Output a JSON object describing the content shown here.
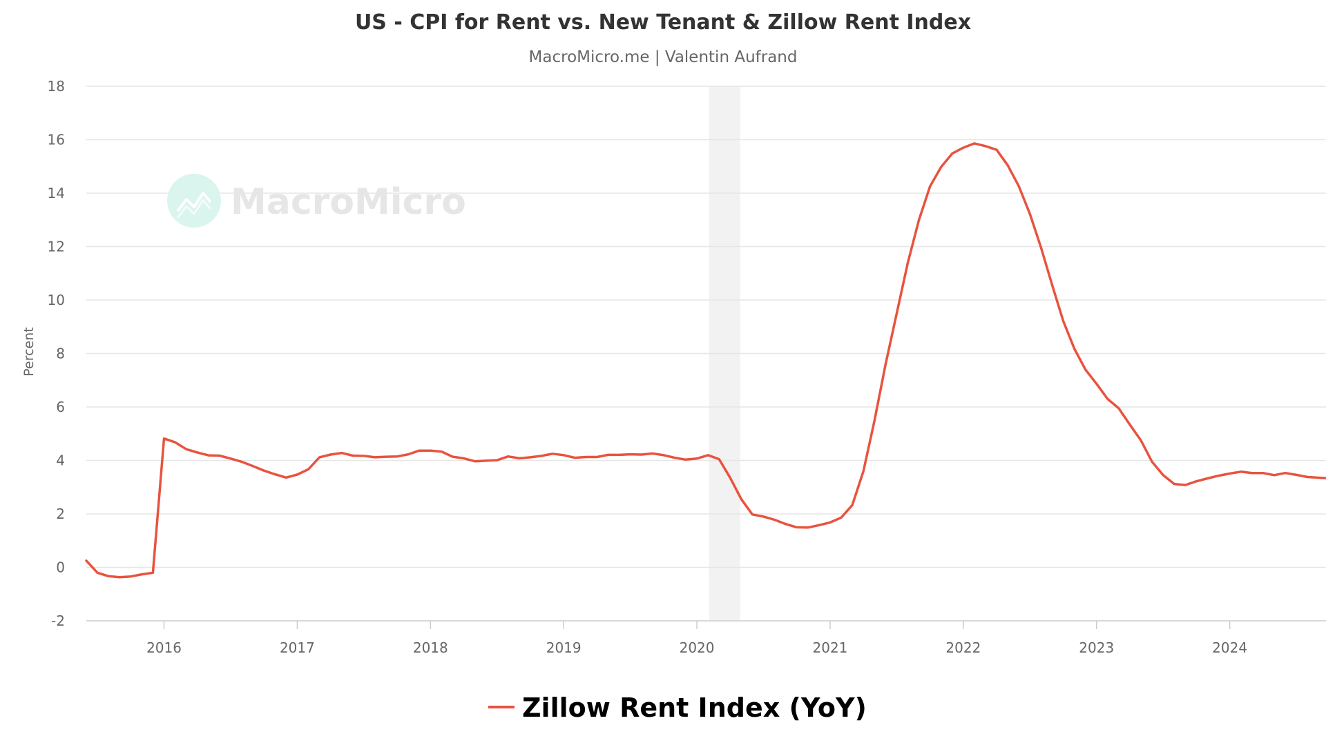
{
  "title": "US - CPI for Rent vs. New Tenant & Zillow Rent Index",
  "subtitle": "MacroMicro.me | Valentin Aufrand",
  "watermark": "MacroMicro",
  "colors": {
    "series": "#e8533f",
    "recession_band": "#f2f2f2",
    "grid": "#e6e6e6",
    "watermark_icon": "#d9f5ee"
  },
  "chart_data": {
    "type": "line",
    "title": "US - CPI for Rent vs. New Tenant & Zillow Rent Index",
    "subtitle": "MacroMicro.me | Valentin Aufrand",
    "xlabel": "",
    "ylabel": "Percent",
    "x_tick_labels": [
      "2016",
      "2017",
      "2018",
      "2019",
      "2020",
      "2021",
      "2022",
      "2023",
      "2024"
    ],
    "xlim": [
      "2015-06",
      "2024-09"
    ],
    "y_ticks": [
      -2,
      0,
      2,
      4,
      6,
      8,
      10,
      12,
      14,
      16,
      18
    ],
    "ylim": [
      -2,
      18
    ],
    "grid": true,
    "legend_position": "bottom-center",
    "shaded_periods": [
      {
        "start": "2020-02",
        "end": "2020-04"
      }
    ],
    "series": [
      {
        "name": "Zillow Rent Index (YoY)",
        "color": "#e8533f",
        "x": [
          "2015-06",
          "2015-07",
          "2015-08",
          "2015-09",
          "2015-10",
          "2015-11",
          "2015-12",
          "2016-01",
          "2016-02",
          "2016-03",
          "2016-04",
          "2016-05",
          "2016-06",
          "2016-07",
          "2016-08",
          "2016-09",
          "2016-10",
          "2016-11",
          "2016-12",
          "2017-01",
          "2017-02",
          "2017-03",
          "2017-04",
          "2017-05",
          "2017-06",
          "2017-07",
          "2017-08",
          "2017-09",
          "2017-10",
          "2017-11",
          "2017-12",
          "2018-01",
          "2018-02",
          "2018-03",
          "2018-04",
          "2018-05",
          "2018-06",
          "2018-07",
          "2018-08",
          "2018-09",
          "2018-10",
          "2018-11",
          "2018-12",
          "2019-01",
          "2019-02",
          "2019-03",
          "2019-04",
          "2019-05",
          "2019-06",
          "2019-07",
          "2019-08",
          "2019-09",
          "2019-10",
          "2019-11",
          "2019-12",
          "2020-01",
          "2020-02",
          "2020-03",
          "2020-04",
          "2020-05",
          "2020-06",
          "2020-07",
          "2020-08",
          "2020-09",
          "2020-10",
          "2020-11",
          "2020-12",
          "2021-01",
          "2021-02",
          "2021-03",
          "2021-04",
          "2021-05",
          "2021-06",
          "2021-07",
          "2021-08",
          "2021-09",
          "2021-10",
          "2021-11",
          "2021-12",
          "2022-01",
          "2022-02",
          "2022-03",
          "2022-04",
          "2022-05",
          "2022-06",
          "2022-07",
          "2022-08",
          "2022-09",
          "2022-10",
          "2022-11",
          "2022-12",
          "2023-01",
          "2023-02",
          "2023-03",
          "2023-04",
          "2023-05",
          "2023-06",
          "2023-07",
          "2023-08",
          "2023-09",
          "2023-10",
          "2023-11",
          "2023-12",
          "2024-01",
          "2024-02",
          "2024-03",
          "2024-04",
          "2024-05",
          "2024-06",
          "2024-07",
          "2024-08",
          "2024-09"
        ],
        "values": [
          0.25,
          -0.2,
          -0.33,
          -0.37,
          -0.34,
          -0.26,
          -0.2,
          4.82,
          4.68,
          4.42,
          4.3,
          4.19,
          4.18,
          4.07,
          3.95,
          3.79,
          3.62,
          3.48,
          3.36,
          3.47,
          3.67,
          4.12,
          4.22,
          4.28,
          4.18,
          4.17,
          4.12,
          4.14,
          4.15,
          4.23,
          4.37,
          4.37,
          4.33,
          4.14,
          4.08,
          3.97,
          3.99,
          4.01,
          4.15,
          4.08,
          4.12,
          4.17,
          4.25,
          4.2,
          4.1,
          4.13,
          4.13,
          4.21,
          4.21,
          4.23,
          4.22,
          4.26,
          4.2,
          4.1,
          4.03,
          4.07,
          4.2,
          4.05,
          3.35,
          2.55,
          1.98,
          1.9,
          1.78,
          1.62,
          1.5,
          1.49,
          1.58,
          1.68,
          1.86,
          2.33,
          3.6,
          5.5,
          7.6,
          9.5,
          11.4,
          13.0,
          14.25,
          14.98,
          15.48,
          15.7,
          15.86,
          15.76,
          15.62,
          15.04,
          14.26,
          13.22,
          11.96,
          10.56,
          9.22,
          8.18,
          7.4,
          6.87,
          6.3,
          5.95,
          5.34,
          4.75,
          3.95,
          3.45,
          3.12,
          3.08,
          3.22,
          3.33,
          3.43,
          3.51,
          3.58,
          3.53,
          3.53,
          3.45,
          3.53,
          3.46,
          3.38,
          3.34
        ]
      }
    ]
  }
}
